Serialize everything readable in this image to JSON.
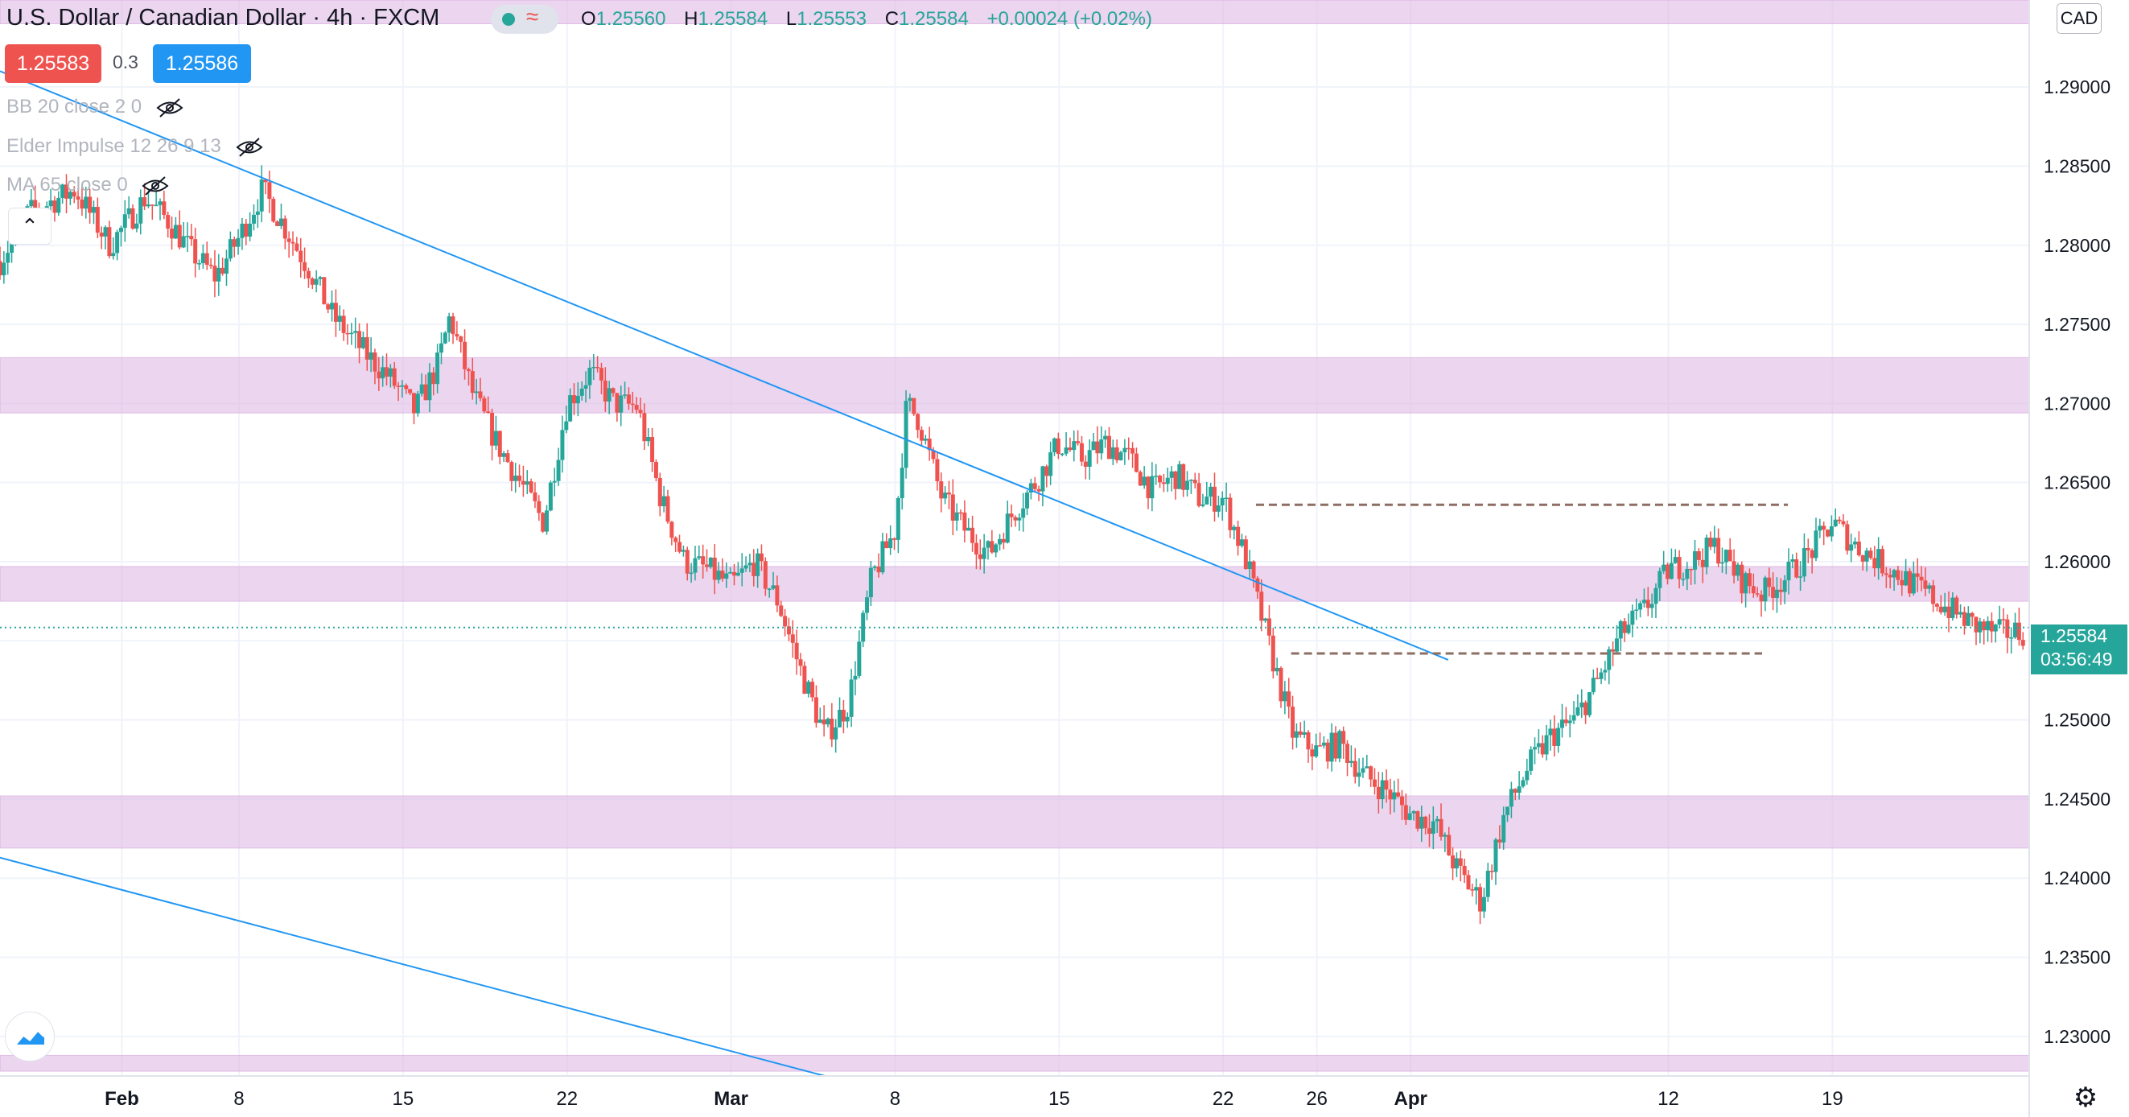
{
  "header": {
    "title": "U.S. Dollar / Canadian Dollar · 4h · FXCM",
    "open_label": "O",
    "open": "1.25560",
    "high_label": "H",
    "high": "1.25584",
    "low_label": "L",
    "low": "1.25553",
    "close_label": "C",
    "close": "1.25584",
    "change": "+0.00024 (+0.02%)"
  },
  "trade": {
    "sell_price": "1.25583",
    "spread": "0.3",
    "buy_price": "1.25586"
  },
  "indicators": [
    {
      "label": "BB 20 close 2 0"
    },
    {
      "label": "Elder Impulse 12 26 9 13"
    },
    {
      "label": "MA 65 close 0"
    }
  ],
  "currency": "CAD",
  "last_price": {
    "price": "1.25584",
    "countdown": "03:56:49"
  },
  "icons": [
    "eye-off-icon",
    "chevron-up-icon",
    "tradingview-logo-icon",
    "settings-gear-icon",
    "market-status-icon"
  ],
  "colors": {
    "up": "#26a69a",
    "down": "#ef5350",
    "zone": "#e1bee7",
    "trendline": "#2196f3",
    "range": "#8d6e63",
    "last": "#26a69a",
    "buy": "#2196f3"
  },
  "chart_data": {
    "type": "candlestick",
    "title": "U.S. Dollar / Canadian Dollar · 4h · FXCM",
    "ylim": [
      1.2275,
      1.2955
    ],
    "y_ticks": [
      "1.23000",
      "1.23500",
      "1.24000",
      "1.24500",
      "1.25000",
      "1.25500",
      "1.26000",
      "1.26500",
      "1.27000",
      "1.27500",
      "1.28000",
      "1.28500",
      "1.29000"
    ],
    "x_ticks": [
      {
        "label": "Feb",
        "day": 3
      },
      {
        "label": "8",
        "day": 8
      },
      {
        "label": "15",
        "day": 15
      },
      {
        "label": "22",
        "day": 22
      },
      {
        "label": "Mar",
        "day": 29
      },
      {
        "label": "8",
        "day": 36
      },
      {
        "label": "15",
        "day": 43
      },
      {
        "label": "22",
        "day": 50
      },
      {
        "label": "26",
        "day": 54
      },
      {
        "label": "Apr",
        "day": 58
      },
      {
        "label": "12",
        "day": 69
      },
      {
        "label": "19",
        "day": 76
      }
    ],
    "x_range_days": [
      -2.2,
      84.4
    ],
    "grid": true,
    "zones": [
      {
        "from": 1.2694,
        "to": 1.2729
      },
      {
        "from": 1.2575,
        "to": 1.2597
      },
      {
        "from": 1.2419,
        "to": 1.2452
      },
      {
        "from": 1.2278,
        "to": 1.2288
      },
      {
        "from": 1.2955,
        "to": 1.294
      }
    ],
    "trendlines": [
      {
        "from": [
          -2.2,
          1.291
        ],
        "to": [
          59.6,
          1.2538
        ]
      },
      {
        "from": [
          -2.2,
          1.2413
        ],
        "to": [
          33.0,
          1.2275
        ]
      }
    ],
    "range_lines": [
      {
        "from": [
          51.4,
          1.2636
        ],
        "to": [
          74.1,
          1.2636
        ]
      },
      {
        "from": [
          52.9,
          1.2542
        ],
        "to": [
          73.0,
          1.2542
        ]
      }
    ],
    "last_value": 1.25584,
    "close_path": [
      [
        -2.2,
        1.279
      ],
      [
        -1,
        1.282
      ],
      [
        1,
        1.2835
      ],
      [
        2.5,
        1.28
      ],
      [
        4,
        1.283
      ],
      [
        5,
        1.2815
      ],
      [
        6,
        1.2795
      ],
      [
        7,
        1.278
      ],
      [
        8,
        1.2805
      ],
      [
        9,
        1.2835
      ],
      [
        10,
        1.281
      ],
      [
        11,
        1.2785
      ],
      [
        12,
        1.2755
      ],
      [
        13.5,
        1.273
      ],
      [
        14.5,
        1.2715
      ],
      [
        15.5,
        1.2695
      ],
      [
        16.5,
        1.2725
      ],
      [
        17,
        1.2755
      ],
      [
        18,
        1.2705
      ],
      [
        19,
        1.2675
      ],
      [
        20,
        1.265
      ],
      [
        21,
        1.2625
      ],
      [
        22,
        1.27
      ],
      [
        23,
        1.272
      ],
      [
        24,
        1.27
      ],
      [
        25,
        1.2698
      ],
      [
        26,
        1.264
      ],
      [
        27,
        1.26
      ],
      [
        28,
        1.2595
      ],
      [
        29,
        1.2585
      ],
      [
        30,
        1.26
      ],
      [
        31,
        1.2575
      ],
      [
        32,
        1.253
      ],
      [
        33,
        1.249
      ],
      [
        34,
        1.251
      ],
      [
        35,
        1.259
      ],
      [
        36,
        1.262
      ],
      [
        36.5,
        1.27
      ],
      [
        37,
        1.269
      ],
      [
        38,
        1.264
      ],
      [
        39,
        1.262
      ],
      [
        40,
        1.2605
      ],
      [
        41,
        1.263
      ],
      [
        42,
        1.265
      ],
      [
        43,
        1.2675
      ],
      [
        44,
        1.2665
      ],
      [
        45,
        1.2675
      ],
      [
        46,
        1.2665
      ],
      [
        47,
        1.2645
      ],
      [
        48,
        1.2655
      ],
      [
        49,
        1.264
      ],
      [
        50,
        1.264
      ],
      [
        51,
        1.26
      ],
      [
        52,
        1.2545
      ],
      [
        53,
        1.249
      ],
      [
        54,
        1.248
      ],
      [
        55,
        1.2485
      ],
      [
        56,
        1.2465
      ],
      [
        57,
        1.2455
      ],
      [
        58,
        1.244
      ],
      [
        59,
        1.2435
      ],
      [
        60,
        1.2405
      ],
      [
        61,
        1.2385
      ],
      [
        62,
        1.244
      ],
      [
        63,
        1.247
      ],
      [
        64,
        1.249
      ],
      [
        65,
        1.25
      ],
      [
        66,
        1.2525
      ],
      [
        67,
        1.2555
      ],
      [
        68,
        1.257
      ],
      [
        69,
        1.2595
      ],
      [
        70,
        1.26
      ],
      [
        71,
        1.261
      ],
      [
        71.5,
        1.26
      ],
      [
        72,
        1.259
      ],
      [
        73,
        1.258
      ],
      [
        74,
        1.259
      ],
      [
        75,
        1.2605
      ],
      [
        76,
        1.2625
      ],
      [
        77,
        1.261
      ],
      [
        78,
        1.26
      ],
      [
        79,
        1.259
      ],
      [
        80,
        1.258
      ],
      [
        81,
        1.257
      ],
      [
        82,
        1.256
      ],
      [
        83,
        1.2555
      ],
      [
        84.4,
        1.2556
      ]
    ]
  }
}
